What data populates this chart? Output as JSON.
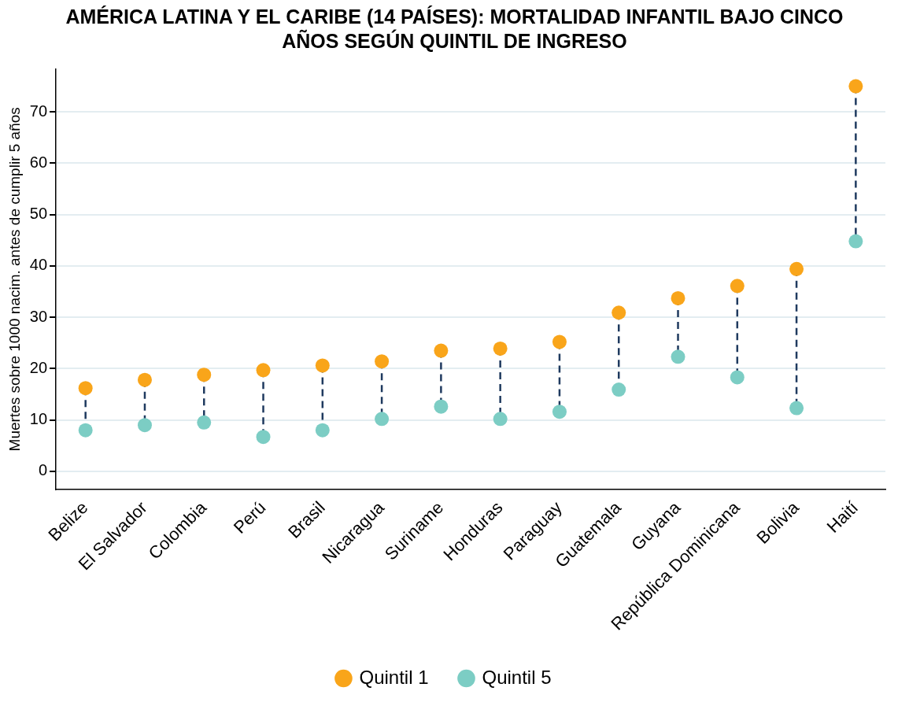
{
  "chart_data": {
    "type": "scatter",
    "title": "AMÉRICA LATINA Y EL CARIBE (14 PAÍSES): MORTALIDAD INFANTIL BAJO CINCO AÑOS SEGÚN QUINTIL DE INGRESO",
    "ylabel": "Muertes sobre 1000 nacim. antes de cumplir 5 años",
    "categories": [
      "Belize",
      "El Salvador",
      "Colombia",
      "Perú",
      "Brasil",
      "Nicaragua",
      "Suriname",
      "Honduras",
      "Paraguay",
      "Guatemala",
      "Guyana",
      "República Dominicana",
      "Bolivia",
      "Haití"
    ],
    "series": [
      {
        "name": "Quintil 1",
        "color": "#f9a51a",
        "values": [
          16.2,
          17.8,
          18.8,
          19.7,
          20.6,
          21.4,
          23.5,
          23.9,
          25.2,
          30.9,
          33.7,
          36.1,
          39.4,
          75.0
        ]
      },
      {
        "name": "Quintil 5",
        "color": "#7ccdc4",
        "values": [
          8.0,
          9.0,
          9.5,
          6.7,
          8.0,
          10.2,
          12.6,
          10.2,
          11.6,
          15.9,
          22.3,
          18.3,
          12.3,
          44.8
        ]
      }
    ],
    "ylim": [
      -3.5,
      78.3
    ],
    "yticks": [
      0,
      10,
      20,
      30,
      40,
      50,
      60,
      70
    ],
    "grid": "y",
    "legend": "bottom",
    "marker": "circle",
    "line_style": "dashed"
  }
}
